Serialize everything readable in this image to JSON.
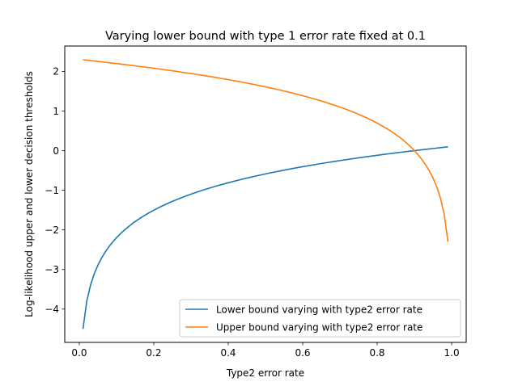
{
  "chart_data": {
    "type": "line",
    "title": "Varying lower bound with type 1 error rate fixed at 0.1",
    "xlabel": "Type2 error rate",
    "ylabel": "Log-likelihood upper and lower decision thresholds",
    "xlim": [
      -0.039,
      1.039
    ],
    "ylim": [
      -4.84,
      2.64
    ],
    "xticks": [
      0.0,
      0.2,
      0.4,
      0.6,
      0.8,
      1.0
    ],
    "xtick_labels": [
      "0.0",
      "0.2",
      "0.4",
      "0.6",
      "0.8",
      "1.0"
    ],
    "yticks": [
      -4,
      -3,
      -2,
      -1,
      0,
      1,
      2
    ],
    "ytick_labels": [
      "−4",
      "−3",
      "−2",
      "−1",
      "0",
      "1",
      "2"
    ],
    "grid": false,
    "legend_position": "lower-right",
    "alpha": 0.1,
    "x_domain": [
      0.01,
      0.99
    ],
    "sample_count": 99,
    "series": [
      {
        "name": "Lower bound varying with type2 error rate",
        "color": "#1f77b4",
        "formula": "ln(beta / (1 - alpha))"
      },
      {
        "name": "Upper bound varying with type2 error rate",
        "color": "#ff7f0e",
        "formula": "ln((1 - beta) / alpha)"
      }
    ]
  }
}
